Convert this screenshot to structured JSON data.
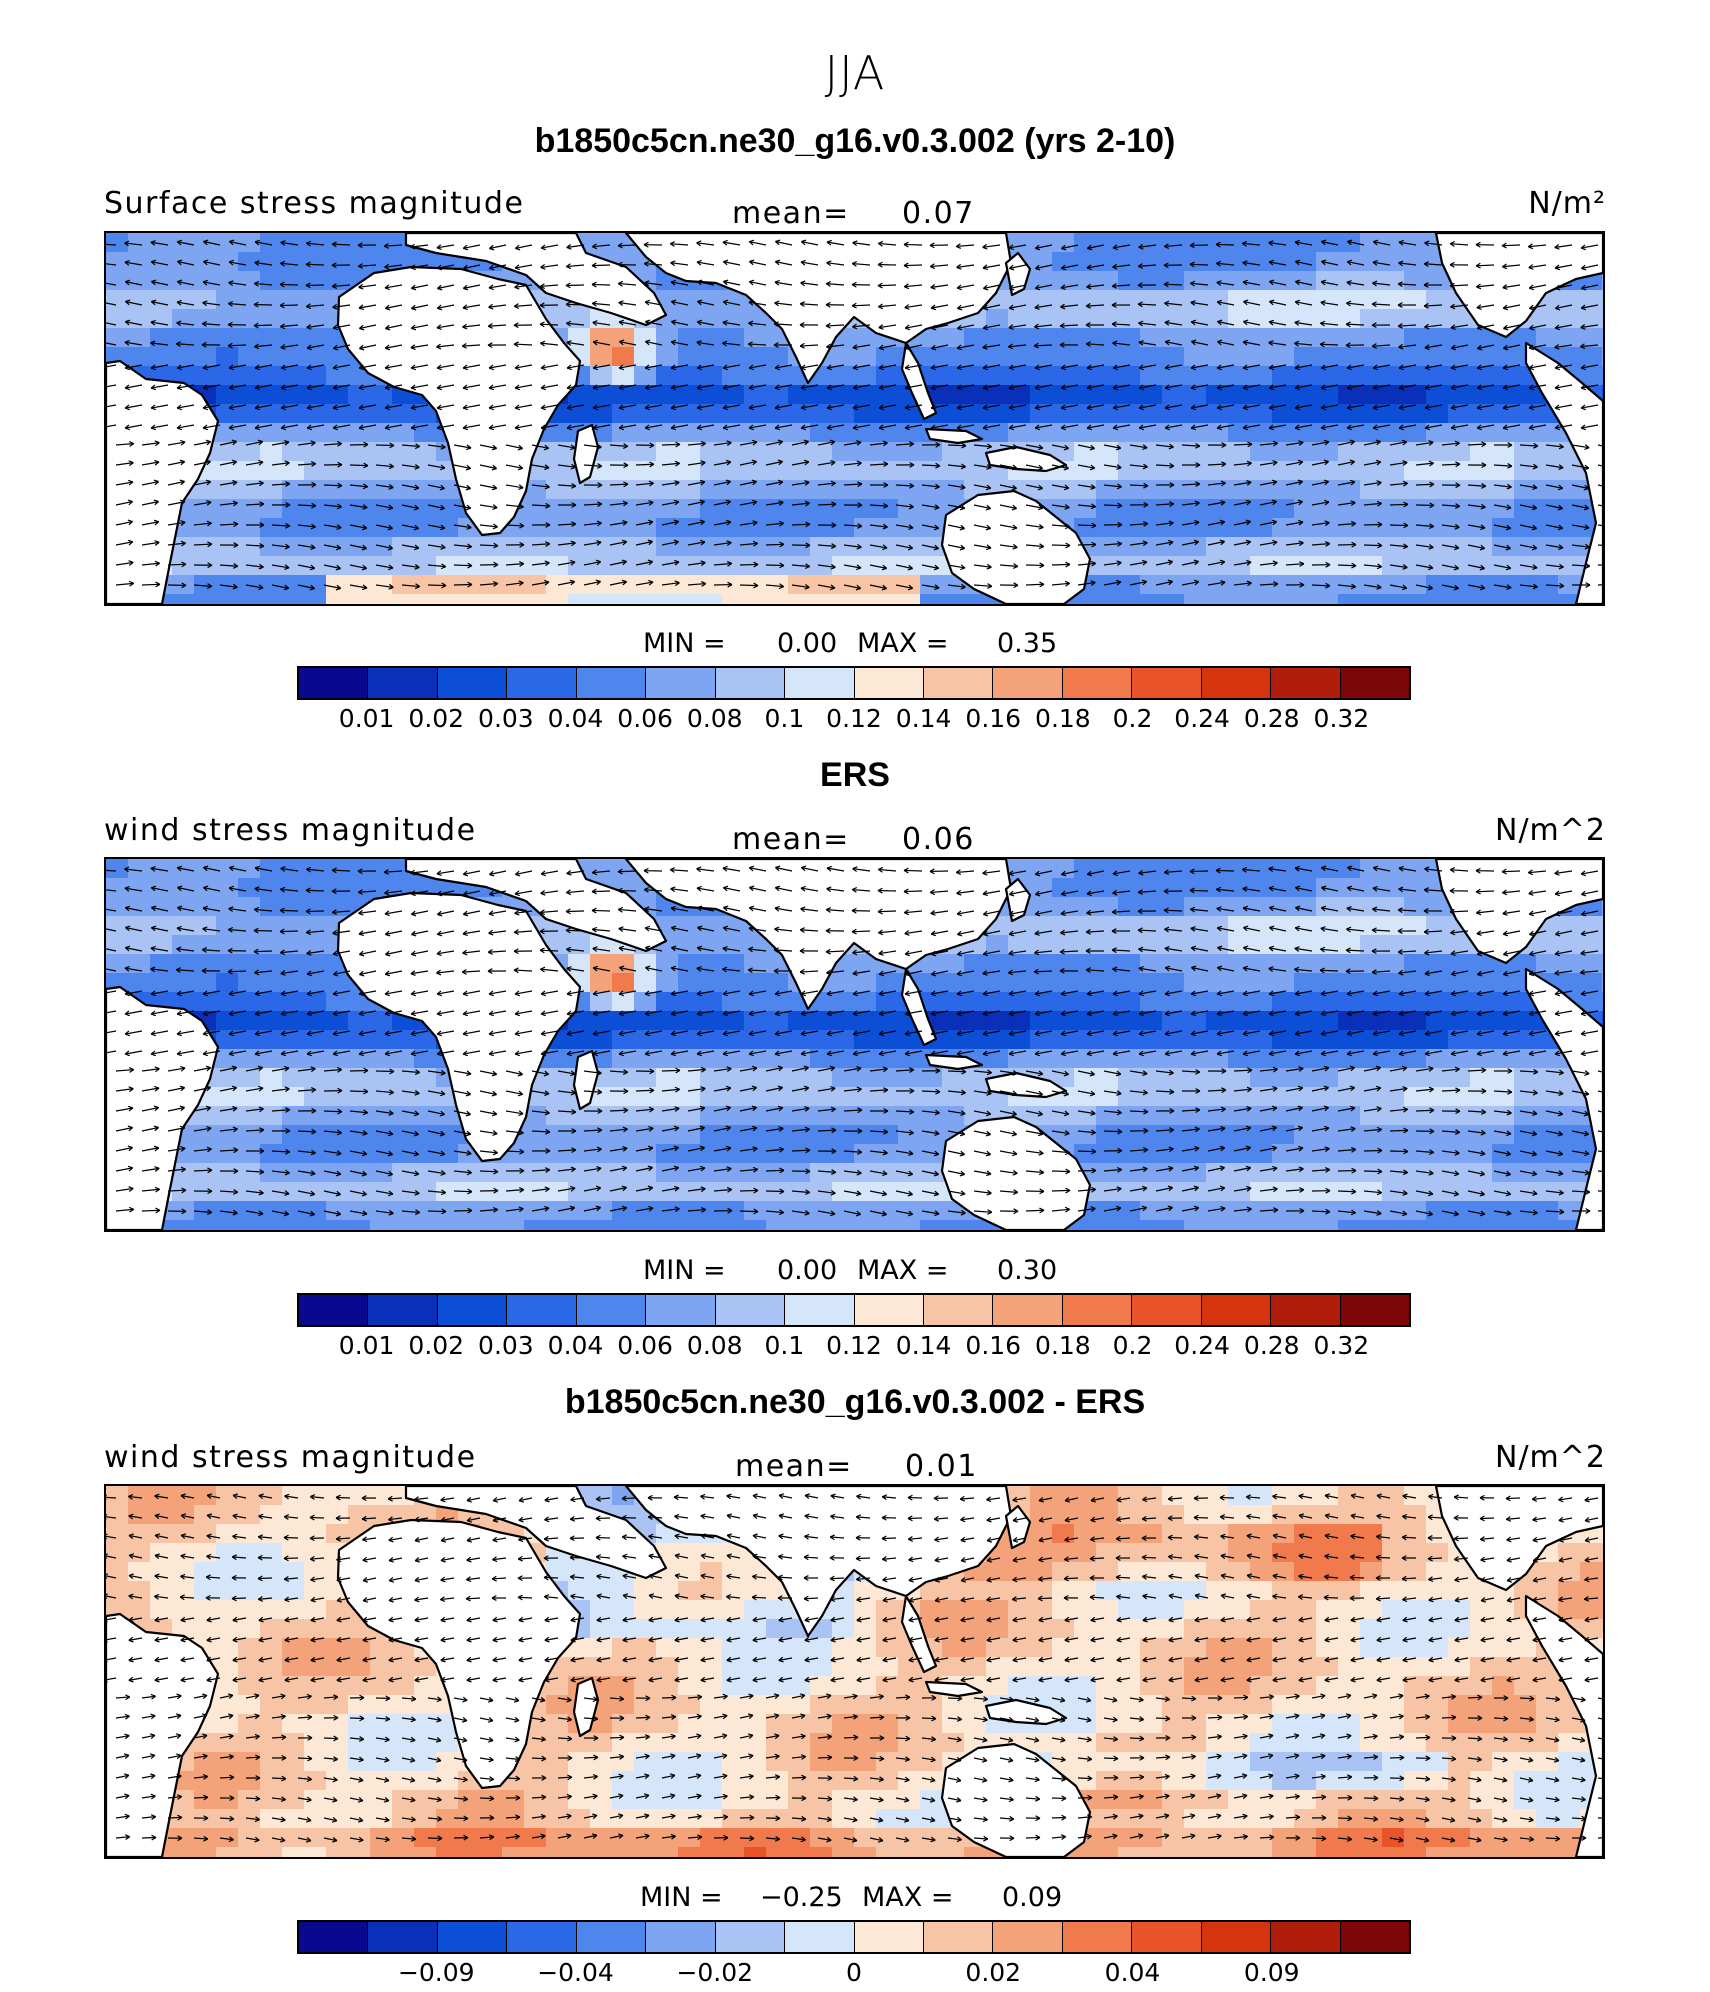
{
  "season": "JJA",
  "colors": [
    "#08098f",
    "#0a2fb8",
    "#0c4fd6",
    "#2a68e8",
    "#4f86ee",
    "#7da5f2",
    "#a9c3f5",
    "#d5e5fa",
    "#fde8d5",
    "#f8c4a6",
    "#f4a27a",
    "#f07a4c",
    "#e8532a",
    "#d6340f",
    "#b01d0a",
    "#7d0608"
  ],
  "panels": [
    {
      "title": "b1850c5cn.ne30_g16.v0.3.002 (yrs 2-10)",
      "left_label": "Surface stress magnitude",
      "mean_label": "mean=",
      "mean_value": "0.07",
      "units": "N/m²",
      "min_label": "MIN =",
      "min_value": "0.00",
      "max_label": "MAX =",
      "max_value": "0.35",
      "colorbar_labels": [
        "0.01",
        "0.02",
        "0.03",
        "0.04",
        "0.06",
        "0.08",
        "0.1",
        "0.12",
        "0.14",
        "0.16",
        "0.18",
        "0.2",
        "0.24",
        "0.28",
        "0.32"
      ],
      "field": "model"
    },
    {
      "title": "ERS",
      "left_label": "wind stress magnitude",
      "mean_label": "mean=",
      "mean_value": "0.06",
      "units": "N/m^2",
      "min_label": "MIN =",
      "min_value": "0.00",
      "max_label": "MAX =",
      "max_value": "0.30",
      "colorbar_labels": [
        "0.01",
        "0.02",
        "0.03",
        "0.04",
        "0.06",
        "0.08",
        "0.1",
        "0.12",
        "0.14",
        "0.16",
        "0.18",
        "0.2",
        "0.24",
        "0.28",
        "0.32"
      ],
      "field": "obs"
    },
    {
      "title": "b1850c5cn.ne30_g16.v0.3.002 - ERS",
      "left_label": "wind stress magnitude",
      "mean_label": "mean=",
      "mean_value": "0.01",
      "units": "N/m^2",
      "min_label": "MIN =",
      "min_value": "−0.25",
      "max_label": "MAX =",
      "max_value": "0.09",
      "colorbar_labels": [
        "−0.09",
        "−0.04",
        "−0.02",
        "0",
        "0.02",
        "0.04",
        "0.09"
      ],
      "colorbar_label_bounds": [
        2,
        4,
        6,
        8,
        10,
        12,
        14
      ],
      "field": "diff"
    }
  ]
}
